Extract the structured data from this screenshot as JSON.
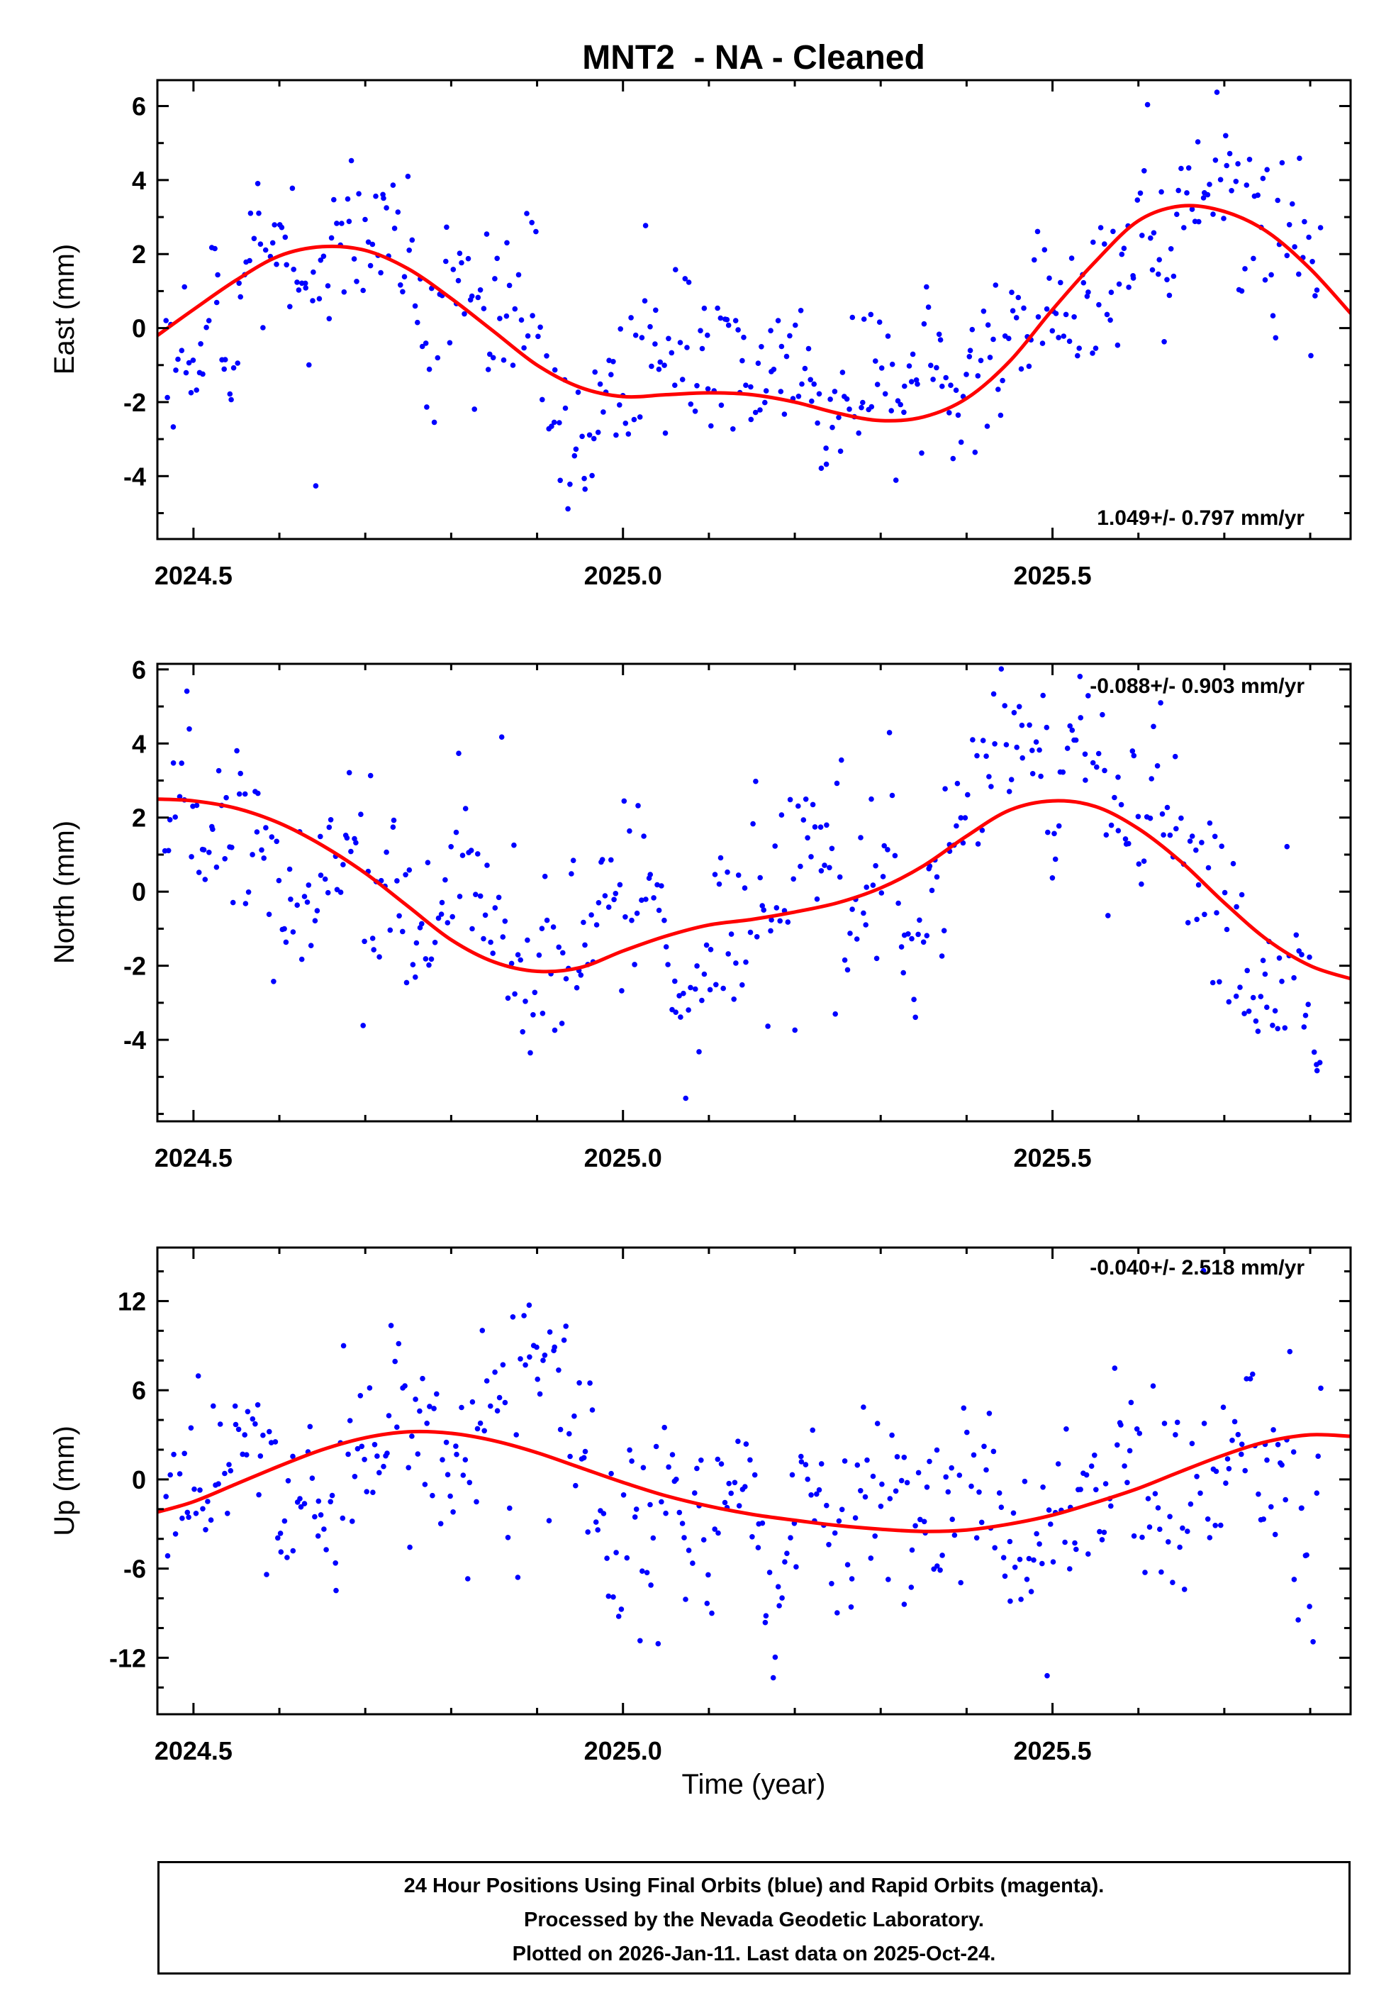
{
  "title": "MNT2  - NA - Cleaned",
  "xlabel": "Time (year)",
  "footer": {
    "line1": "24 Hour Positions Using Final Orbits (blue) and Rapid Orbits (magenta).",
    "line2": "Processed by the Nevada Geodetic Laboratory.",
    "line3": "Plotted on 2026-Jan-11. Last data on 2025-Oct-24."
  },
  "colors": {
    "points": "#0000ff",
    "curve": "#ff0000",
    "axis": "#000000",
    "background": "#ffffff"
  },
  "chart_data": [
    {
      "type": "scatter",
      "component": "East",
      "ylabel": "East (mm)",
      "rate_label": "1.049+/- 0.797 mm/yr",
      "rate_mm_per_yr": 1.049,
      "rate_sigma_mm_per_yr": 0.797,
      "rate_label_position": "bottom-right",
      "xlim": [
        2024.458,
        2025.847
      ],
      "ylim": [
        -5.7,
        6.7
      ],
      "xticks": [
        2024.5,
        2025.0,
        2025.5
      ],
      "xtick_labels": [
        "2024.5",
        "2025.0",
        "2025.5"
      ],
      "xtick_minor": 0.1,
      "yticks": [
        6,
        4,
        2,
        0,
        -2,
        -4
      ],
      "ytick_labels": [
        "6",
        "4",
        "2",
        "0",
        "-2",
        "-4"
      ],
      "ytick_minor": 1,
      "curve": {
        "t": [
          2024.458,
          2024.5,
          2024.55,
          2024.6,
          2024.65,
          2024.7,
          2024.75,
          2024.8,
          2024.85,
          2024.9,
          2024.95,
          2025.0,
          2025.05,
          2025.1,
          2025.15,
          2025.2,
          2025.25,
          2025.3,
          2025.35,
          2025.4,
          2025.45,
          2025.5,
          2025.55,
          2025.6,
          2025.65,
          2025.7,
          2025.75,
          2025.8,
          2025.847
        ],
        "y": [
          -0.2,
          0.5,
          1.3,
          1.95,
          2.2,
          2.1,
          1.6,
          0.8,
          -0.1,
          -1.0,
          -1.6,
          -1.85,
          -1.8,
          -1.75,
          -1.8,
          -2.0,
          -2.3,
          -2.5,
          -2.4,
          -1.9,
          -0.9,
          0.5,
          1.8,
          2.9,
          3.3,
          3.15,
          2.6,
          1.6,
          0.4
        ]
      },
      "scatter": {
        "n": 460,
        "sigma_mm": 1.2,
        "seed": 11,
        "t_range": [
          2024.468,
          2025.812
        ]
      }
    },
    {
      "type": "scatter",
      "component": "North",
      "ylabel": "North (mm)",
      "rate_label": "-0.088+/- 0.903 mm/yr",
      "rate_mm_per_yr": -0.088,
      "rate_sigma_mm_per_yr": 0.903,
      "rate_label_position": "top-right",
      "xlim": [
        2024.458,
        2025.847
      ],
      "ylim": [
        -6.2,
        6.15
      ],
      "xticks": [
        2024.5,
        2025.0,
        2025.5
      ],
      "xtick_labels": [
        "2024.5",
        "2025.0",
        "2025.5"
      ],
      "xtick_minor": 0.1,
      "yticks": [
        6,
        4,
        2,
        0,
        -2,
        -4
      ],
      "ytick_labels": [
        "6",
        "4",
        "2",
        "0",
        "-2",
        "-4"
      ],
      "ytick_minor": 1,
      "curve": {
        "t": [
          2024.458,
          2024.5,
          2024.55,
          2024.6,
          2024.65,
          2024.7,
          2024.75,
          2024.8,
          2024.85,
          2024.9,
          2024.95,
          2025.0,
          2025.05,
          2025.1,
          2025.15,
          2025.2,
          2025.25,
          2025.3,
          2025.35,
          2025.4,
          2025.45,
          2025.5,
          2025.55,
          2025.6,
          2025.65,
          2025.7,
          2025.75,
          2025.8,
          2025.847
        ],
        "y": [
          2.5,
          2.45,
          2.25,
          1.85,
          1.25,
          0.5,
          -0.4,
          -1.3,
          -1.9,
          -2.15,
          -2.05,
          -1.6,
          -1.2,
          -0.9,
          -0.75,
          -0.55,
          -0.3,
          0.1,
          0.7,
          1.5,
          2.2,
          2.45,
          2.3,
          1.7,
          0.8,
          -0.3,
          -1.3,
          -2.0,
          -2.35
        ]
      },
      "scatter": {
        "n": 460,
        "sigma_mm": 1.3,
        "seed": 23,
        "t_range": [
          2024.468,
          2025.812
        ]
      }
    },
    {
      "type": "scatter",
      "component": "Up",
      "ylabel": "Up (mm)",
      "rate_label": "-0.040+/- 2.518 mm/yr",
      "rate_mm_per_yr": -0.04,
      "rate_sigma_mm_per_yr": 2.518,
      "rate_label_position": "top-right",
      "xlim": [
        2024.458,
        2025.847
      ],
      "ylim": [
        -15.8,
        15.6
      ],
      "xticks": [
        2024.5,
        2025.0,
        2025.5
      ],
      "xtick_labels": [
        "2024.5",
        "2025.0",
        "2025.5"
      ],
      "xtick_minor": 0.1,
      "yticks": [
        12,
        6,
        0,
        -6,
        -12
      ],
      "ytick_labels": [
        "12",
        "6",
        "0",
        "-6",
        "-12"
      ],
      "ytick_minor": 2,
      "curve": {
        "t": [
          2024.458,
          2024.5,
          2024.55,
          2024.6,
          2024.65,
          2024.7,
          2024.75,
          2024.8,
          2024.85,
          2024.9,
          2024.95,
          2025.0,
          2025.05,
          2025.1,
          2025.15,
          2025.2,
          2025.25,
          2025.3,
          2025.35,
          2025.4,
          2025.45,
          2025.5,
          2025.55,
          2025.6,
          2025.65,
          2025.7,
          2025.75,
          2025.8,
          2025.847
        ],
        "y": [
          -2.2,
          -1.5,
          -0.3,
          0.9,
          2.0,
          2.8,
          3.2,
          3.1,
          2.6,
          1.8,
          0.8,
          -0.2,
          -1.1,
          -1.8,
          -2.35,
          -2.75,
          -3.1,
          -3.35,
          -3.5,
          -3.4,
          -3.0,
          -2.4,
          -1.55,
          -0.6,
          0.55,
          1.65,
          2.55,
          3.0,
          2.9
        ]
      },
      "scatter": {
        "n": 460,
        "sigma_mm": 3.9,
        "seed": 37,
        "t_range": [
          2024.468,
          2025.812
        ]
      }
    }
  ]
}
